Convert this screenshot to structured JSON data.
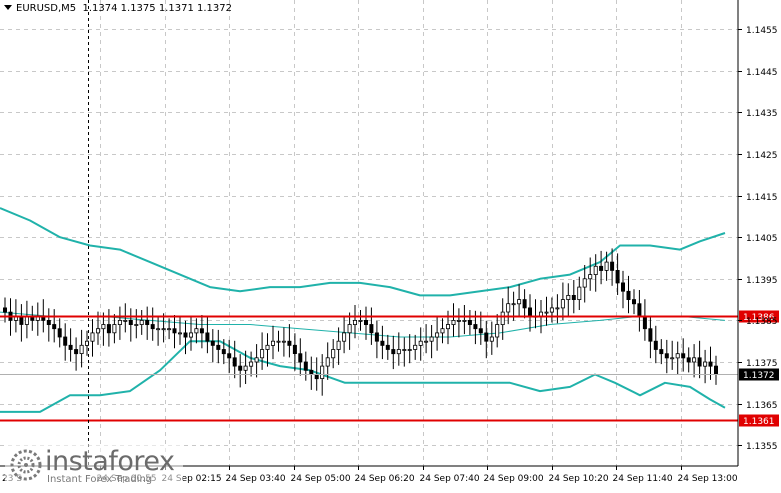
{
  "header": {
    "symbol": "EURUSD,M5",
    "ohlc": "1.1374 1.1375 1.1371 1.1372"
  },
  "branding": {
    "name": "instaforex",
    "tagline": "Instant Forex Trading"
  },
  "chart_data": {
    "type": "candlestick",
    "y_range": [
      1.135,
      1.1462
    ],
    "y_ticks": [
      "1.1455",
      "1.1445",
      "1.1435",
      "1.1425",
      "1.1415",
      "1.1405",
      "1.1395",
      "1.1385",
      "1.1375",
      "1.1365",
      "1.1355"
    ],
    "x_ticks": [
      "24 Sep 00:55",
      "24 Sep 02:15",
      "24 Sep 03:40",
      "24 Sep 05:00",
      "24 Sep 06:20",
      "24 Sep 07:40",
      "24 Sep 09:00",
      "24 Sep 10:20",
      "24 Sep 11:40",
      "24 Sep 13:00"
    ],
    "first_x_label_partial": "23 S",
    "current_price": "1.1372",
    "horizontal_levels": [
      {
        "value": 1.1386,
        "label": "1.1386",
        "color": "#e00000"
      },
      {
        "value": 1.1361,
        "label": "1.1361",
        "color": "#e00000"
      }
    ],
    "candle_closes": [
      1.1387,
      1.1385,
      1.1386,
      1.1384,
      1.1386,
      1.1385,
      1.1386,
      1.1385,
      1.1384,
      1.1383,
      1.1381,
      1.1379,
      1.1378,
      1.1377,
      1.1379,
      1.138,
      1.1382,
      1.1383,
      1.1384,
      1.1382,
      1.1384,
      1.1385,
      1.1385,
      1.1384,
      1.1384,
      1.1385,
      1.1384,
      1.1383,
      1.1383,
      1.1383,
      1.1383,
      1.1382,
      1.1382,
      1.1381,
      1.1382,
      1.1383,
      1.1382,
      1.138,
      1.1379,
      1.1378,
      1.1377,
      1.1376,
      1.1374,
      1.1373,
      1.1374,
      1.1375,
      1.1376,
      1.1378,
      1.1379,
      1.138,
      1.138,
      1.138,
      1.1379,
      1.1377,
      1.1375,
      1.1373,
      1.1372,
      1.1371,
      1.1374,
      1.1376,
      1.1378,
      1.138,
      1.1382,
      1.1384,
      1.1385,
      1.1385,
      1.1384,
      1.1382,
      1.138,
      1.1379,
      1.1378,
      1.1377,
      1.1378,
      1.1378,
      1.1378,
      1.1379,
      1.138,
      1.138,
      1.1381,
      1.1382,
      1.1383,
      1.1384,
      1.1385,
      1.1385,
      1.1385,
      1.1384,
      1.1383,
      1.1382,
      1.138,
      1.1381,
      1.1384,
      1.1387,
      1.1389,
      1.1389,
      1.139,
      1.1388,
      1.1386,
      1.1386,
      1.1387,
      1.1387,
      1.1388,
      1.1388,
      1.139,
      1.1391,
      1.139,
      1.1393,
      1.1395,
      1.1396,
      1.1398,
      1.1397,
      1.1399,
      1.1397,
      1.1394,
      1.1392,
      1.139,
      1.1389,
      1.1386,
      1.1383,
      1.138,
      1.1378,
      1.1377,
      1.1376,
      1.1376,
      1.1377,
      1.1376,
      1.1375,
      1.1376,
      1.1374,
      1.1375,
      1.1374,
      1.1372
    ],
    "bollinger": {
      "upper": [
        [
          0,
          1.1412
        ],
        [
          30,
          1.1409
        ],
        [
          60,
          1.1405
        ],
        [
          90,
          1.1403
        ],
        [
          120,
          1.1402
        ],
        [
          150,
          1.1399
        ],
        [
          180,
          1.1396
        ],
        [
          210,
          1.1393
        ],
        [
          240,
          1.1392
        ],
        [
          270,
          1.1393
        ],
        [
          300,
          1.1393
        ],
        [
          330,
          1.1394
        ],
        [
          360,
          1.1394
        ],
        [
          390,
          1.1393
        ],
        [
          420,
          1.1391
        ],
        [
          450,
          1.1391
        ],
        [
          480,
          1.1392
        ],
        [
          510,
          1.1393
        ],
        [
          540,
          1.1395
        ],
        [
          570,
          1.1396
        ],
        [
          600,
          1.1399
        ],
        [
          620,
          1.1403
        ],
        [
          650,
          1.1403
        ],
        [
          680,
          1.1402
        ],
        [
          700,
          1.1404
        ],
        [
          725,
          1.1406
        ]
      ],
      "middle": [
        [
          0,
          1.1387
        ],
        [
          50,
          1.1386
        ],
        [
          100,
          1.1386
        ],
        [
          150,
          1.1385
        ],
        [
          200,
          1.1384
        ],
        [
          250,
          1.1384
        ],
        [
          300,
          1.1383
        ],
        [
          350,
          1.1382
        ],
        [
          400,
          1.1381
        ],
        [
          450,
          1.1381
        ],
        [
          500,
          1.1382
        ],
        [
          550,
          1.1384
        ],
        [
          600,
          1.1385
        ],
        [
          640,
          1.1386
        ],
        [
          680,
          1.1386
        ],
        [
          725,
          1.1385
        ]
      ],
      "lower": [
        [
          0,
          1.1363
        ],
        [
          40,
          1.1363
        ],
        [
          70,
          1.1367
        ],
        [
          100,
          1.1367
        ],
        [
          130,
          1.1368
        ],
        [
          160,
          1.1373
        ],
        [
          190,
          1.138
        ],
        [
          220,
          1.138
        ],
        [
          250,
          1.1376
        ],
        [
          280,
          1.1374
        ],
        [
          310,
          1.1373
        ],
        [
          345,
          1.137
        ],
        [
          400,
          1.137
        ],
        [
          460,
          1.137
        ],
        [
          510,
          1.137
        ],
        [
          540,
          1.1368
        ],
        [
          570,
          1.1369
        ],
        [
          595,
          1.1372
        ],
        [
          615,
          1.137
        ],
        [
          640,
          1.1367
        ],
        [
          665,
          1.137
        ],
        [
          690,
          1.1369
        ],
        [
          710,
          1.1366
        ],
        [
          725,
          1.1364
        ]
      ]
    }
  }
}
